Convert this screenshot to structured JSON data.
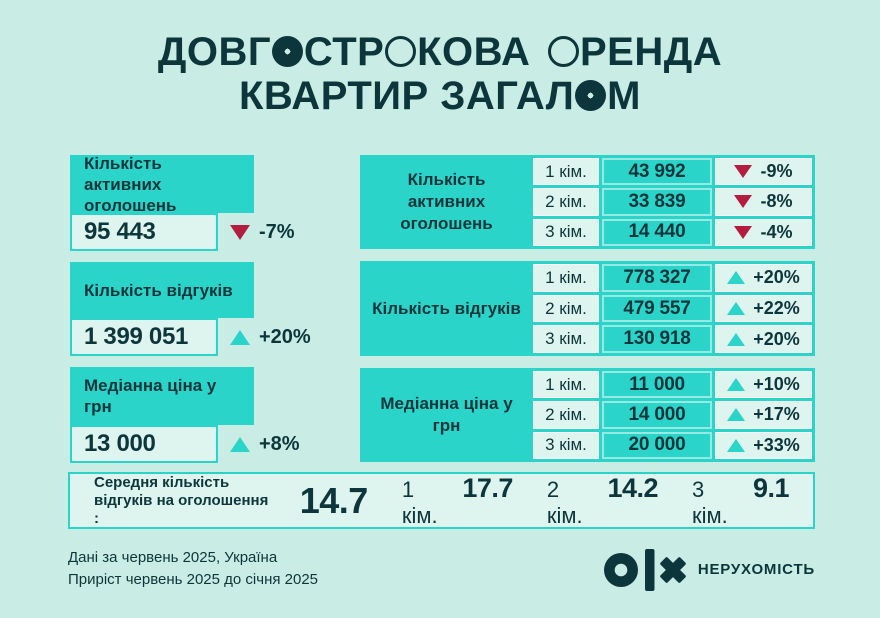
{
  "page": {
    "bg_color": "#c9ece4",
    "accent_teal": "#2bd4c8",
    "light_cell": "#def4ee",
    "dark_text": "#0d363c",
    "negative_red": "#b31e3e"
  },
  "title": {
    "line1_text": "ДОВГОСТРОКОВА ОРЕНДА",
    "line2_text": "КВАРТИР ЗАГАЛОМ",
    "line1_segments": [
      {
        "s": "text",
        "t": "ДОВГ"
      },
      {
        "s": "disc"
      },
      {
        "s": "text",
        "t": "СТР"
      },
      {
        "s": "ring"
      },
      {
        "s": "text",
        "t": "КОВА"
      },
      {
        "s": "gap"
      },
      {
        "s": "ring"
      },
      {
        "s": "text",
        "t": "РЕНДА"
      }
    ],
    "line2_segments": [
      {
        "s": "text",
        "t": "КВАРТИР ЗАГАЛ"
      },
      {
        "s": "disc"
      },
      {
        "s": "text",
        "t": "М"
      }
    ]
  },
  "left_boxes": [
    {
      "title": "Кількість активних оголошень",
      "value": "95 443",
      "dir": "down",
      "pct": "-7%"
    },
    {
      "title": "Кількість відгуків",
      "value": "1 399 051",
      "dir": "up",
      "pct": "+20%"
    },
    {
      "title": "Медіанна ціна у грн",
      "value": "13 000",
      "dir": "up",
      "pct": "+8%"
    }
  ],
  "right_table": {
    "sections": [
      {
        "title": "Кількість активних оголошень",
        "rows": [
          {
            "room": "1 кім.",
            "value": "43 992",
            "dir": "down",
            "pct": "-9%"
          },
          {
            "room": "2 кім.",
            "value": "33 839",
            "dir": "down",
            "pct": "-8%"
          },
          {
            "room": "3 кім.",
            "value": "14 440",
            "dir": "down",
            "pct": "-4%"
          }
        ]
      },
      {
        "title": "Кількість відгуків",
        "rows": [
          {
            "room": "1 кім.",
            "value": "778 327",
            "dir": "up",
            "pct": "+20%"
          },
          {
            "room": "2 кім.",
            "value": "479 557",
            "dir": "up",
            "pct": "+22%"
          },
          {
            "room": "3 кім.",
            "value": "130 918",
            "dir": "up",
            "pct": "+20%"
          }
        ]
      },
      {
        "title": "Медіанна ціна у грн",
        "rows": [
          {
            "room": "1 кім.",
            "value": "11 000",
            "dir": "up",
            "pct": "+10%"
          },
          {
            "room": "2 кім.",
            "value": "14 000",
            "dir": "up",
            "pct": "+17%"
          },
          {
            "room": "3 кім.",
            "value": "20 000",
            "dir": "up",
            "pct": "+33%"
          }
        ]
      }
    ]
  },
  "average_bar": {
    "label_line1": "Середня кількість",
    "label_line2": "відгуків на оголошення :",
    "overall": "14.7",
    "pairs": [
      {
        "room": "1 кім.",
        "value": "17.7"
      },
      {
        "room": "2 кім.",
        "value": "14.2"
      },
      {
        "room": "3 кім.",
        "value": "9.1"
      }
    ]
  },
  "footer": {
    "note_line1": "Дані за червень 2025, Україна",
    "note_line2": "Приріст червень 2025 до січня 2025",
    "brand_text": "НЕРУХОМІСТЬ"
  },
  "chart_data": {
    "type": "table",
    "title": "Довгострокова оренда квартир загалом",
    "overall": {
      "active_listings": {
        "value": 95443,
        "change_pct": -7
      },
      "responses": {
        "value": 1399051,
        "change_pct": 20
      },
      "median_price_uah": {
        "value": 13000,
        "change_pct": 8
      }
    },
    "categories": [
      "1 кім.",
      "2 кім.",
      "3 кім."
    ],
    "series": [
      {
        "name": "Кількість активних оголошень",
        "values": [
          43992,
          33839,
          14440
        ],
        "change_pct": [
          -9,
          -8,
          -4
        ]
      },
      {
        "name": "Кількість відгуків",
        "values": [
          778327,
          479557,
          130918
        ],
        "change_pct": [
          20,
          22,
          20
        ]
      },
      {
        "name": "Медіанна ціна у грн",
        "values": [
          11000,
          14000,
          20000
        ],
        "change_pct": [
          10,
          17,
          33
        ]
      }
    ],
    "avg_responses_per_listing": {
      "overall": 14.7,
      "1 кім.": 17.7,
      "2 кім.": 14.2,
      "3 кім.": 9.1
    },
    "notes": [
      "Дані за червень 2025, Україна",
      "Приріст червень 2025 до січня 2025"
    ]
  }
}
